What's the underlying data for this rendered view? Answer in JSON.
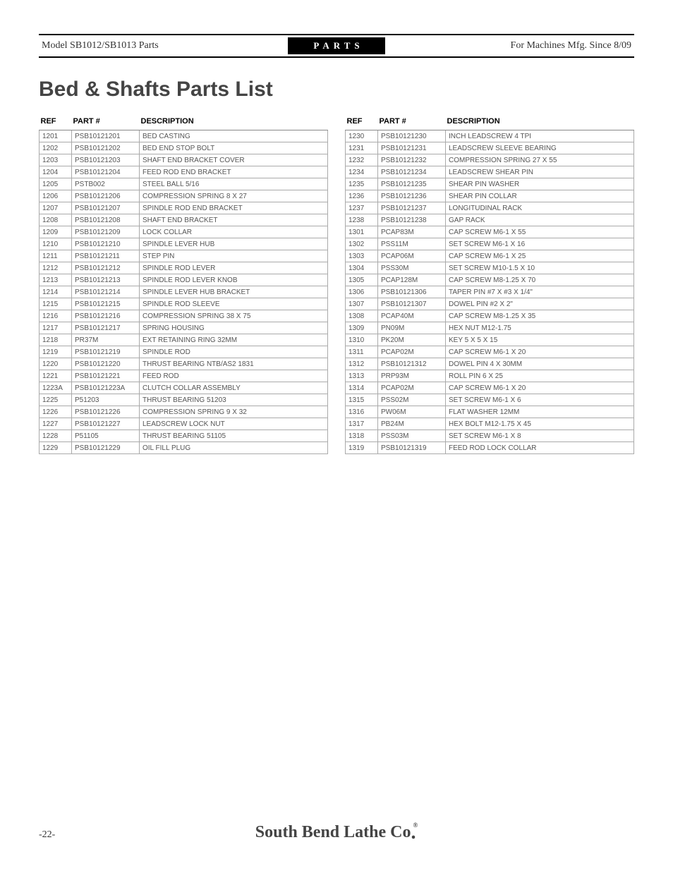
{
  "header": {
    "left": "Model SB1012/SB1013 Parts",
    "center": "PARTS",
    "right": "For Machines Mfg. Since 8/09"
  },
  "title": "Bed & Shafts Parts List",
  "columns": {
    "ref": "REF",
    "part": "PART #",
    "desc": "DESCRIPTION"
  },
  "left_rows": [
    {
      "ref": "1201",
      "part": "PSB10121201",
      "desc": "BED CASTING"
    },
    {
      "ref": "1202",
      "part": "PSB10121202",
      "desc": "BED END STOP BOLT"
    },
    {
      "ref": "1203",
      "part": "PSB10121203",
      "desc": "SHAFT END BRACKET COVER"
    },
    {
      "ref": "1204",
      "part": "PSB10121204",
      "desc": "FEED ROD END BRACKET"
    },
    {
      "ref": "1205",
      "part": "PSTB002",
      "desc": "STEEL BALL 5/16"
    },
    {
      "ref": "1206",
      "part": "PSB10121206",
      "desc": "COMPRESSION SPRING 8 X 27"
    },
    {
      "ref": "1207",
      "part": "PSB10121207",
      "desc": "SPINDLE ROD END BRACKET"
    },
    {
      "ref": "1208",
      "part": "PSB10121208",
      "desc": "SHAFT END BRACKET"
    },
    {
      "ref": "1209",
      "part": "PSB10121209",
      "desc": "LOCK COLLAR"
    },
    {
      "ref": "1210",
      "part": "PSB10121210",
      "desc": "SPINDLE LEVER HUB"
    },
    {
      "ref": "1211",
      "part": "PSB10121211",
      "desc": "STEP PIN"
    },
    {
      "ref": "1212",
      "part": "PSB10121212",
      "desc": "SPINDLE ROD LEVER"
    },
    {
      "ref": "1213",
      "part": "PSB10121213",
      "desc": "SPINDLE ROD LEVER KNOB"
    },
    {
      "ref": "1214",
      "part": "PSB10121214",
      "desc": "SPINDLE LEVER HUB BRACKET"
    },
    {
      "ref": "1215",
      "part": "PSB10121215",
      "desc": "SPINDLE ROD SLEEVE"
    },
    {
      "ref": "1216",
      "part": "PSB10121216",
      "desc": "COMPRESSION SPRING 38 X 75"
    },
    {
      "ref": "1217",
      "part": "PSB10121217",
      "desc": "SPRING HOUSING"
    },
    {
      "ref": "1218",
      "part": "PR37M",
      "desc": "EXT RETAINING RING 32MM"
    },
    {
      "ref": "1219",
      "part": "PSB10121219",
      "desc": "SPINDLE ROD"
    },
    {
      "ref": "1220",
      "part": "PSB10121220",
      "desc": "THRUST BEARING NTB/AS2 1831"
    },
    {
      "ref": "1221",
      "part": "PSB10121221",
      "desc": "FEED ROD"
    },
    {
      "ref": "1223A",
      "part": "PSB10121223A",
      "desc": "CLUTCH COLLAR ASSEMBLY"
    },
    {
      "ref": "1225",
      "part": "P51203",
      "desc": "THRUST BEARING 51203"
    },
    {
      "ref": "1226",
      "part": "PSB10121226",
      "desc": "COMPRESSION SPRING 9 X 32"
    },
    {
      "ref": "1227",
      "part": "PSB10121227",
      "desc": "LEADSCREW LOCK NUT"
    },
    {
      "ref": "1228",
      "part": "P51105",
      "desc": "THRUST BEARING 51105"
    },
    {
      "ref": "1229",
      "part": "PSB10121229",
      "desc": "OIL FILL PLUG"
    }
  ],
  "right_rows": [
    {
      "ref": "1230",
      "part": "PSB10121230",
      "desc": "INCH LEADSCREW 4 TPI"
    },
    {
      "ref": "1231",
      "part": "PSB10121231",
      "desc": "LEADSCREW SLEEVE BEARING"
    },
    {
      "ref": "1232",
      "part": "PSB10121232",
      "desc": "COMPRESSION SPRING 27 X 55"
    },
    {
      "ref": "1234",
      "part": "PSB10121234",
      "desc": "LEADSCREW SHEAR PIN"
    },
    {
      "ref": "1235",
      "part": "PSB10121235",
      "desc": "SHEAR PIN WASHER"
    },
    {
      "ref": "1236",
      "part": "PSB10121236",
      "desc": "SHEAR PIN COLLAR"
    },
    {
      "ref": "1237",
      "part": "PSB10121237",
      "desc": "LONGITUDINAL RACK"
    },
    {
      "ref": "1238",
      "part": "PSB10121238",
      "desc": "GAP RACK"
    },
    {
      "ref": "1301",
      "part": "PCAP83M",
      "desc": "CAP SCREW M6-1 X 55"
    },
    {
      "ref": "1302",
      "part": "PSS11M",
      "desc": "SET SCREW M6-1 X 16"
    },
    {
      "ref": "1303",
      "part": "PCAP06M",
      "desc": "CAP SCREW M6-1 X 25"
    },
    {
      "ref": "1304",
      "part": "PSS30M",
      "desc": "SET SCREW M10-1.5 X 10"
    },
    {
      "ref": "1305",
      "part": "PCAP128M",
      "desc": "CAP SCREW M8-1.25 X 70"
    },
    {
      "ref": "1306",
      "part": "PSB10121306",
      "desc": "TAPER PIN #7 X #3 X 1/4\""
    },
    {
      "ref": "1307",
      "part": "PSB10121307",
      "desc": "DOWEL PIN #2 X 2\""
    },
    {
      "ref": "1308",
      "part": "PCAP40M",
      "desc": "CAP SCREW M8-1.25 X 35"
    },
    {
      "ref": "1309",
      "part": "PN09M",
      "desc": "HEX NUT M12-1.75"
    },
    {
      "ref": "1310",
      "part": "PK20M",
      "desc": "KEY 5 X 5 X 15"
    },
    {
      "ref": "1311",
      "part": "PCAP02M",
      "desc": "CAP SCREW M6-1 X 20"
    },
    {
      "ref": "1312",
      "part": "PSB10121312",
      "desc": "DOWEL PIN 4 X 30MM"
    },
    {
      "ref": "1313",
      "part": "PRP93M",
      "desc": "ROLL PIN 6 X 25"
    },
    {
      "ref": "1314",
      "part": "PCAP02M",
      "desc": "CAP SCREW M6-1 X 20"
    },
    {
      "ref": "1315",
      "part": "PSS02M",
      "desc": "SET SCREW M6-1 X 6"
    },
    {
      "ref": "1316",
      "part": "PW06M",
      "desc": "FLAT WASHER 12MM"
    },
    {
      "ref": "1317",
      "part": "PB24M",
      "desc": "HEX BOLT M12-1.75 X 45"
    },
    {
      "ref": "1318",
      "part": "PSS03M",
      "desc": "SET SCREW M6-1 X 8"
    },
    {
      "ref": "1319",
      "part": "PSB10121319",
      "desc": "FEED ROD LOCK COLLAR"
    }
  ],
  "footer": {
    "page": "-22-",
    "brand_main": "South Bend Lathe Co",
    "brand_dot": ".",
    "brand_reg": "®"
  }
}
